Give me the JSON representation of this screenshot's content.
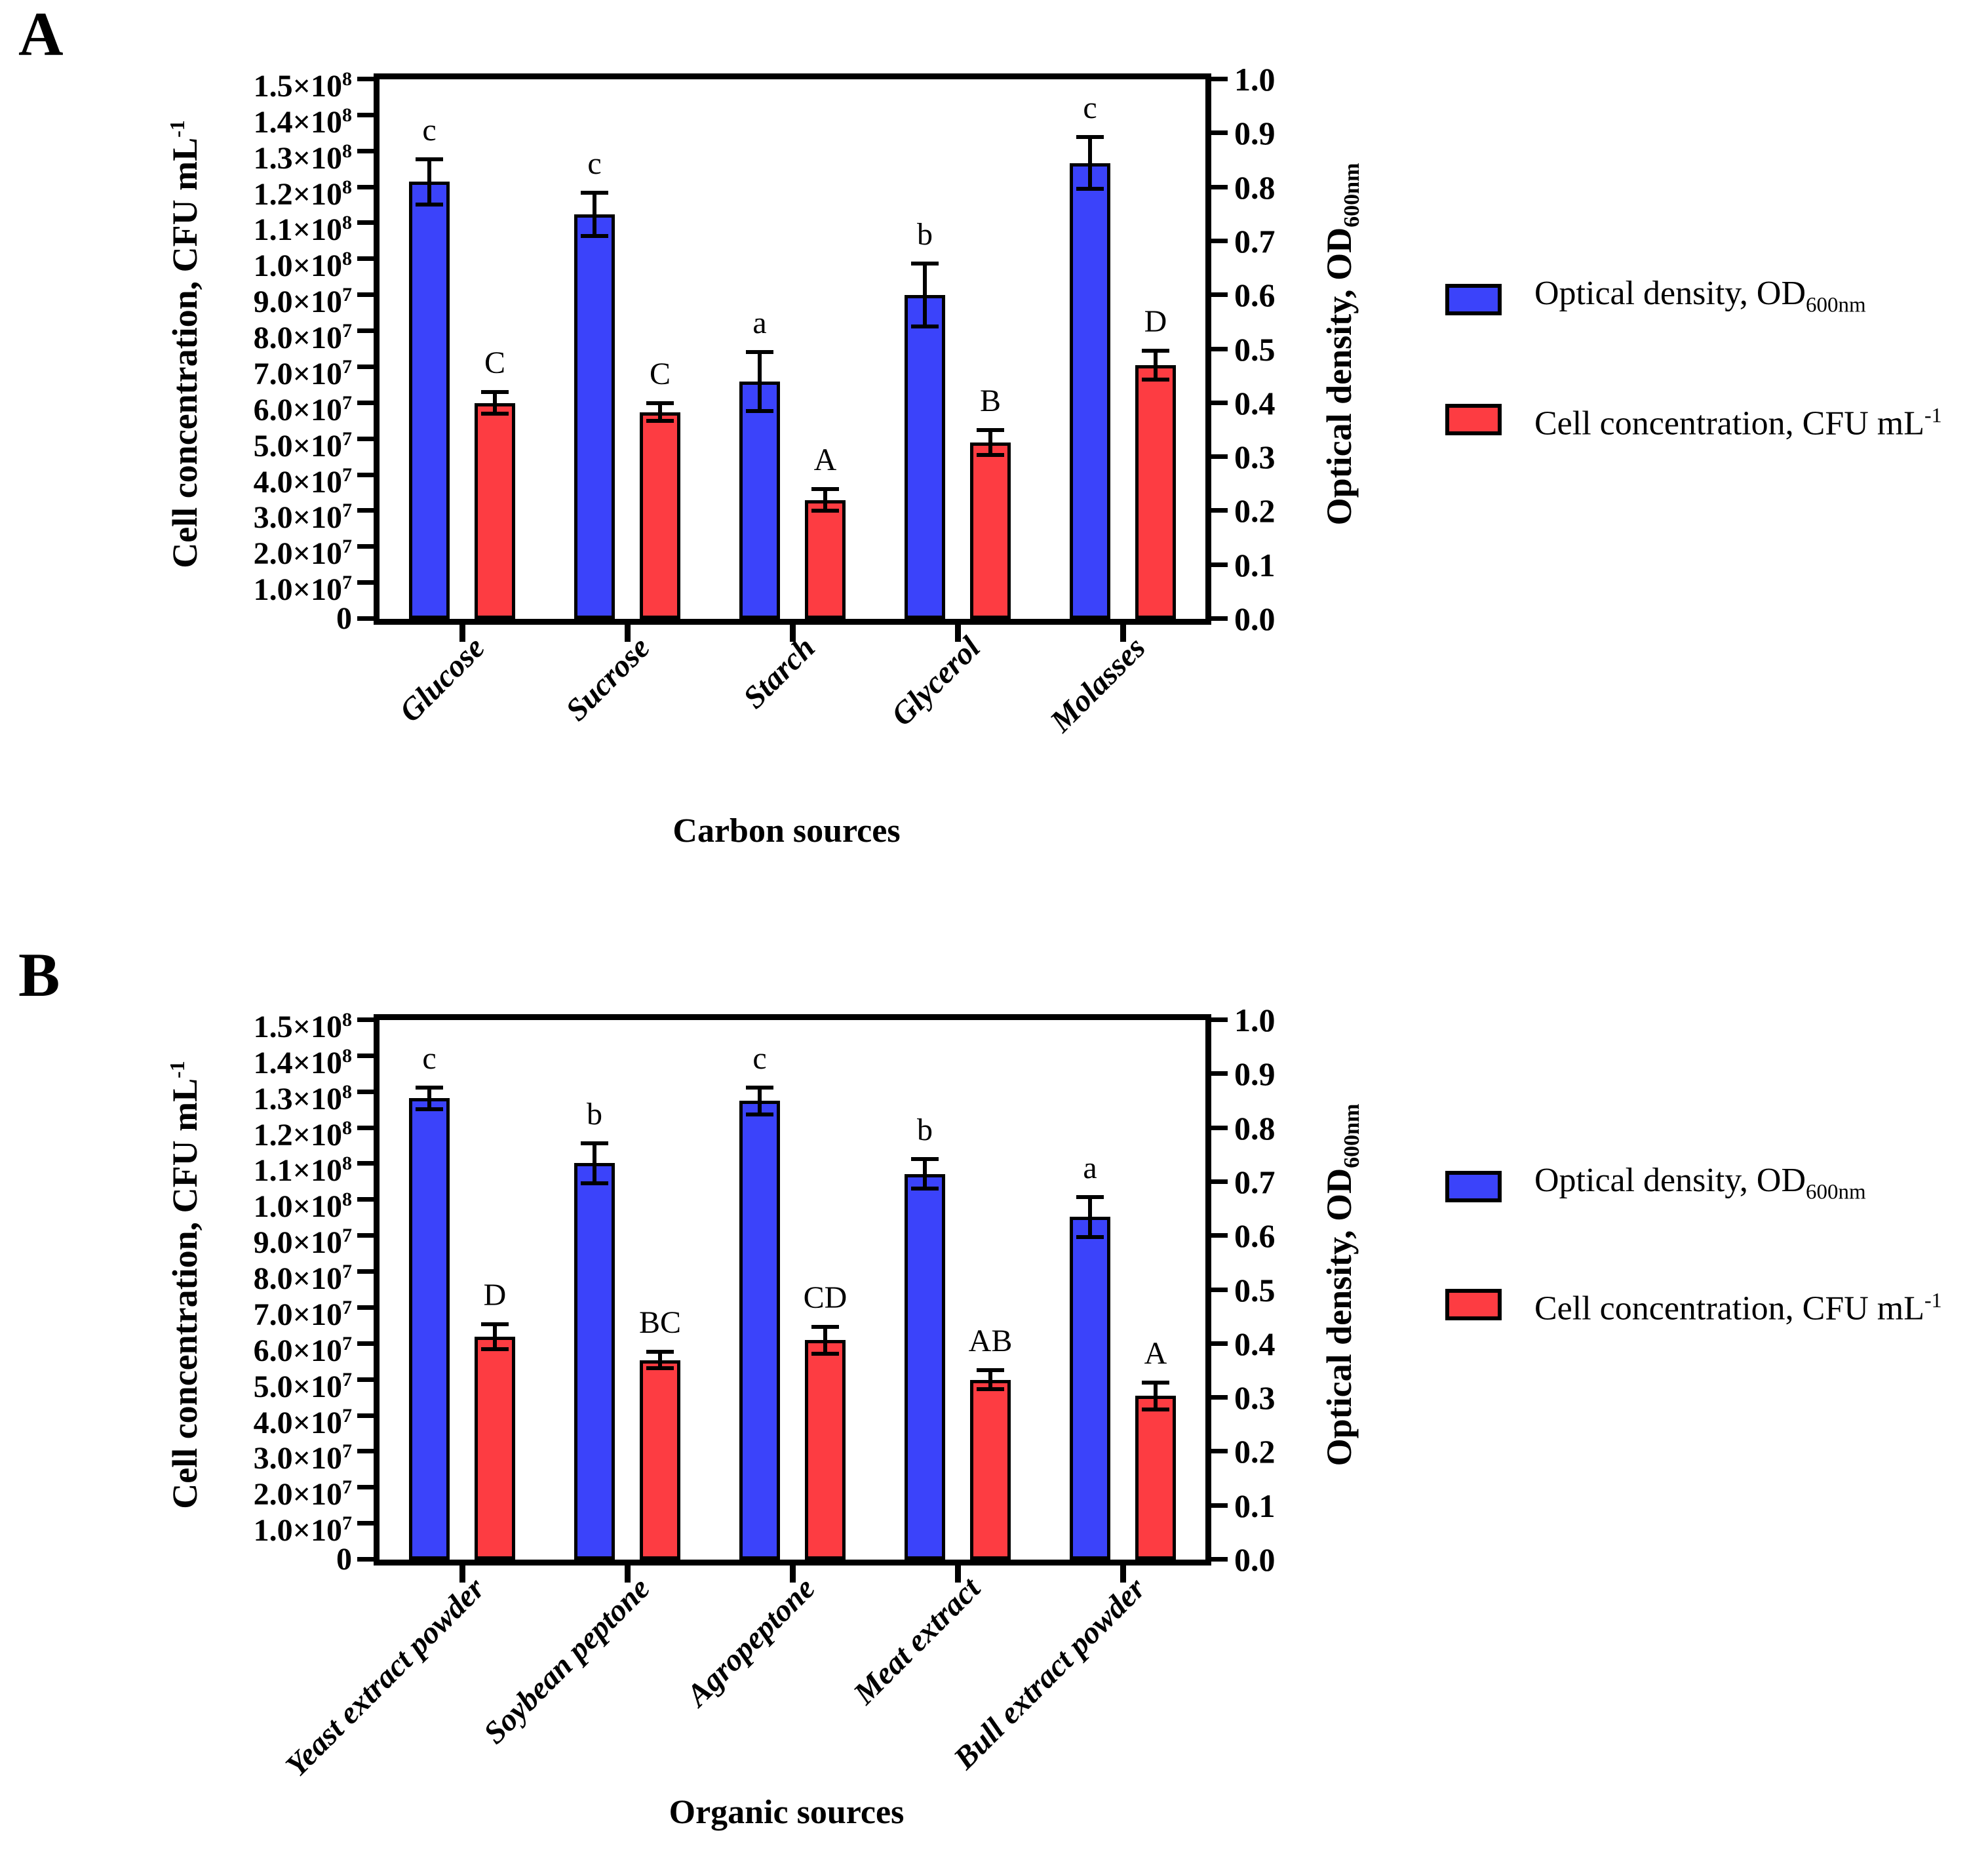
{
  "panel_letters": [
    "A",
    "B"
  ],
  "axes": {
    "left": {
      "title_pre": "Cell concentration, CFU mL",
      "title_sup": "-1",
      "max": 150000000.0,
      "tick_labels": [
        {
          "m": "1.5×10",
          "sup": "8"
        },
        {
          "m": "1.4×10",
          "sup": "8"
        },
        {
          "m": "1.3×10",
          "sup": "8"
        },
        {
          "m": "1.2×10",
          "sup": "8"
        },
        {
          "m": "1.1×10",
          "sup": "8"
        },
        {
          "m": "1.0×10",
          "sup": "8"
        },
        {
          "m": "9.0×10",
          "sup": "7"
        },
        {
          "m": "8.0×10",
          "sup": "7"
        },
        {
          "m": "7.0×10",
          "sup": "7"
        },
        {
          "m": "6.0×10",
          "sup": "7"
        },
        {
          "m": "5.0×10",
          "sup": "7"
        },
        {
          "m": "4.0×10",
          "sup": "7"
        },
        {
          "m": "3.0×10",
          "sup": "7"
        },
        {
          "m": "2.0×10",
          "sup": "7"
        },
        {
          "m": "1.0×10",
          "sup": "7"
        },
        {
          "m": "0",
          "sup": ""
        }
      ]
    },
    "right": {
      "title_pre": "Optical density, OD",
      "title_sub": "600nm",
      "max": 1.0,
      "tick_labels": [
        "1.0",
        "0.9",
        "0.8",
        "0.7",
        "0.6",
        "0.5",
        "0.4",
        "0.3",
        "0.2",
        "0.1",
        "0.0"
      ]
    }
  },
  "legend": {
    "items": [
      {
        "key": "od",
        "pre": "Optical density, OD",
        "sub": "600nm",
        "sup": "",
        "color": "#3B43FA"
      },
      {
        "key": "cfu",
        "pre": "Cell concentration, CFU mL",
        "sub": "",
        "sup": "-1",
        "color": "#FD3C42"
      }
    ]
  },
  "chart_data": [
    {
      "type": "bar",
      "panel": "A",
      "xlabel": "Carbon sources",
      "ylabel_left": "Cell concentration, CFU mL^-1",
      "ylabel_right": "Optical density, OD600nm",
      "ylim_left": [
        0,
        150000000.0
      ],
      "ylim_right": [
        0,
        1.0
      ],
      "grid": false,
      "legend_position": "right",
      "categories": [
        "Glucose",
        "Sucrose",
        "Starch",
        "Glycerol",
        "Molasses"
      ],
      "series": [
        {
          "name": "Optical density, OD600nm",
          "key": "od",
          "axis": "right",
          "color": "#3B43FA",
          "values": [
            0.81,
            0.75,
            0.44,
            0.6,
            0.845
          ],
          "errors": [
            0.042,
            0.04,
            0.055,
            0.058,
            0.048
          ],
          "letters": [
            "c",
            "c",
            "a",
            "b",
            "c"
          ]
        },
        {
          "name": "Cell concentration, CFU mL-1",
          "key": "cfu",
          "axis": "left",
          "color": "#FD3C42",
          "values": [
            60000000.0,
            57500000.0,
            33000000.0,
            49000000.0,
            70500000.0
          ],
          "errors": [
            3000000.0,
            2500000.0,
            3000000.0,
            3500000.0,
            4000000.0
          ],
          "letters": [
            "C",
            "C",
            "A",
            "B",
            "D"
          ]
        }
      ]
    },
    {
      "type": "bar",
      "panel": "B",
      "xlabel": "Organic sources",
      "ylabel_left": "Cell concentration, CFU mL^-1",
      "ylabel_right": "Optical density, OD600nm",
      "ylim_left": [
        0,
        150000000.0
      ],
      "ylim_right": [
        0,
        1.0
      ],
      "grid": false,
      "legend_position": "right",
      "categories": [
        "Yeast extract powder",
        "Soybean peptone",
        "Agropeptone",
        "Meat extract",
        "Bull extract powder"
      ],
      "series": [
        {
          "name": "Optical density, OD600nm",
          "key": "od",
          "axis": "right",
          "color": "#3B43FA",
          "values": [
            0.855,
            0.735,
            0.85,
            0.715,
            0.635
          ],
          "errors": [
            0.02,
            0.037,
            0.025,
            0.027,
            0.037
          ],
          "letters": [
            "c",
            "b",
            "c",
            "b",
            "a"
          ]
        },
        {
          "name": "Cell concentration, CFU mL-1",
          "key": "cfu",
          "axis": "left",
          "color": "#FD3C42",
          "values": [
            62000000.0,
            55500000.0,
            61000000.0,
            50000000.0,
            45500000.0
          ],
          "errors": [
            3500000.0,
            2200000.0,
            3700000.0,
            2700000.0,
            3800000.0
          ],
          "letters": [
            "D",
            "BC",
            "CD",
            "AB",
            "A"
          ]
        }
      ]
    }
  ],
  "layout_hints": {
    "legend_row_tops": [
      [
        427,
        610
      ],
      [
        345,
        525
      ]
    ]
  }
}
